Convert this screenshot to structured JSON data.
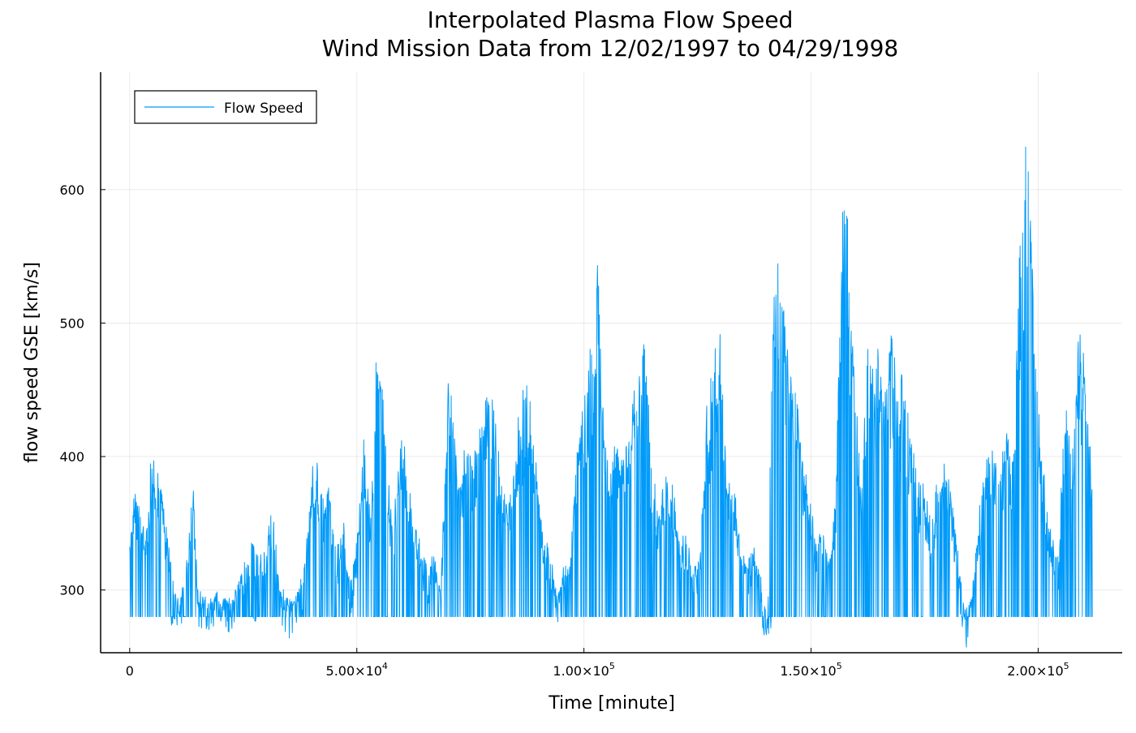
{
  "chart_data": {
    "type": "line",
    "title": "Interpolated Plasma Flow Speed",
    "subtitle": "Wind Mission Data from 12/02/1997 to 04/29/1998",
    "xlabel": "Time [minute]",
    "ylabel": "flow speed GSE [km/s]",
    "xlim": [
      -6400,
      218500
    ],
    "ylim": [
      253,
      688
    ],
    "xticks": [
      0,
      50000,
      100000,
      150000,
      200000
    ],
    "xtick_labels": [
      {
        "mantissa": "0",
        "exponent": ""
      },
      {
        "mantissa": "5.00×10",
        "exponent": "4"
      },
      {
        "mantissa": "1.00×10",
        "exponent": "5"
      },
      {
        "mantissa": "1.50×10",
        "exponent": "5"
      },
      {
        "mantissa": "2.00×10",
        "exponent": "5"
      }
    ],
    "yticks": [
      300,
      400,
      500,
      600
    ],
    "ytick_labels": [
      "300",
      "400",
      "500",
      "600"
    ],
    "grid": true,
    "legend_position": "top-left",
    "series": [
      {
        "name": "Flow Speed",
        "color": "#009af9",
        "fill_value": 280,
        "envelope": {
          "x": [
            0,
            1000,
            2500,
            4000,
            4500,
            5500,
            7000,
            8500,
            10000,
            11000,
            12500,
            14000,
            15000,
            17000,
            19000,
            21000,
            23000,
            25000,
            27000,
            29000,
            30000,
            31500,
            33000,
            35000,
            37000,
            38500,
            40000,
            41000,
            42500,
            44000,
            45500,
            47000,
            48500,
            50000,
            51500,
            53000,
            54500,
            55000,
            56500,
            58000,
            59500,
            61000,
            62500,
            64000,
            65500,
            67000,
            68500,
            70000,
            71000,
            72500,
            74000,
            75500,
            77000,
            78500,
            80000,
            81000,
            82500,
            84000,
            85500,
            87000,
            88000,
            89500,
            91000,
            92500,
            94000,
            95500,
            97000,
            98500,
            100000,
            101000,
            102500,
            103000,
            104000,
            105500,
            107000,
            108500,
            110000,
            111000,
            112500,
            113500,
            115000,
            116500,
            118000,
            119500,
            121000,
            122500,
            124000,
            125500,
            127000,
            128500,
            130000,
            131500,
            133000,
            134500,
            136000,
            137500,
            139000,
            140500,
            141500,
            142500,
            143500,
            145000,
            146500,
            148000,
            149500,
            151000,
            152500,
            154000,
            155500,
            157000,
            158000,
            158500,
            159500,
            161000,
            162500,
            164000,
            164500,
            166000,
            167500,
            168000,
            169000,
            170500,
            172000,
            173500,
            175000,
            176500,
            178000,
            179500,
            181000,
            182500,
            184000,
            185500,
            187000,
            188500,
            190000,
            191500,
            193000,
            194500,
            196000,
            196500,
            197500,
            198500,
            200000,
            201500,
            203000,
            204500,
            206000,
            207500,
            209000,
            210000,
            211000,
            212000
          ],
          "y": [
            340,
            375,
            360,
            350,
            410,
            395,
            385,
            340,
            300,
            290,
            320,
            390,
            300,
            288,
            295,
            293,
            295,
            320,
            340,
            330,
            336,
            370,
            300,
            292,
            300,
            320,
            390,
            405,
            370,
            380,
            330,
            355,
            305,
            340,
            425,
            360,
            500,
            488,
            410,
            340,
            435,
            400,
            355,
            340,
            320,
            330,
            300,
            465,
            440,
            380,
            420,
            400,
            430,
            455,
            470,
            410,
            380,
            370,
            430,
            465,
            450,
            400,
            345,
            330,
            300,
            320,
            330,
            405,
            455,
            470,
            520,
            570,
            470,
            380,
            420,
            405,
            415,
            460,
            480,
            490,
            400,
            360,
            395,
            385,
            350,
            340,
            320,
            320,
            440,
            470,
            510,
            390,
            380,
            340,
            320,
            335,
            305,
            280,
            540,
            550,
            555,
            470,
            470,
            410,
            380,
            340,
            350,
            320,
            380,
            610,
            620,
            540,
            480,
            380,
            500,
            460,
            505,
            450,
            490,
            495,
            470,
            460,
            420,
            390,
            380,
            350,
            390,
            400,
            370,
            320,
            280,
            300,
            360,
            400,
            405,
            400,
            420,
            405,
            570,
            575,
            680,
            580,
            440,
            380,
            340,
            330,
            455,
            400,
            500,
            480,
            470,
            370
          ]
        },
        "min_envelope": {
          "x": [
            10000,
            27000,
            139800,
            140300
          ],
          "y": [
            273,
            276,
            265,
            264
          ]
        }
      }
    ]
  }
}
